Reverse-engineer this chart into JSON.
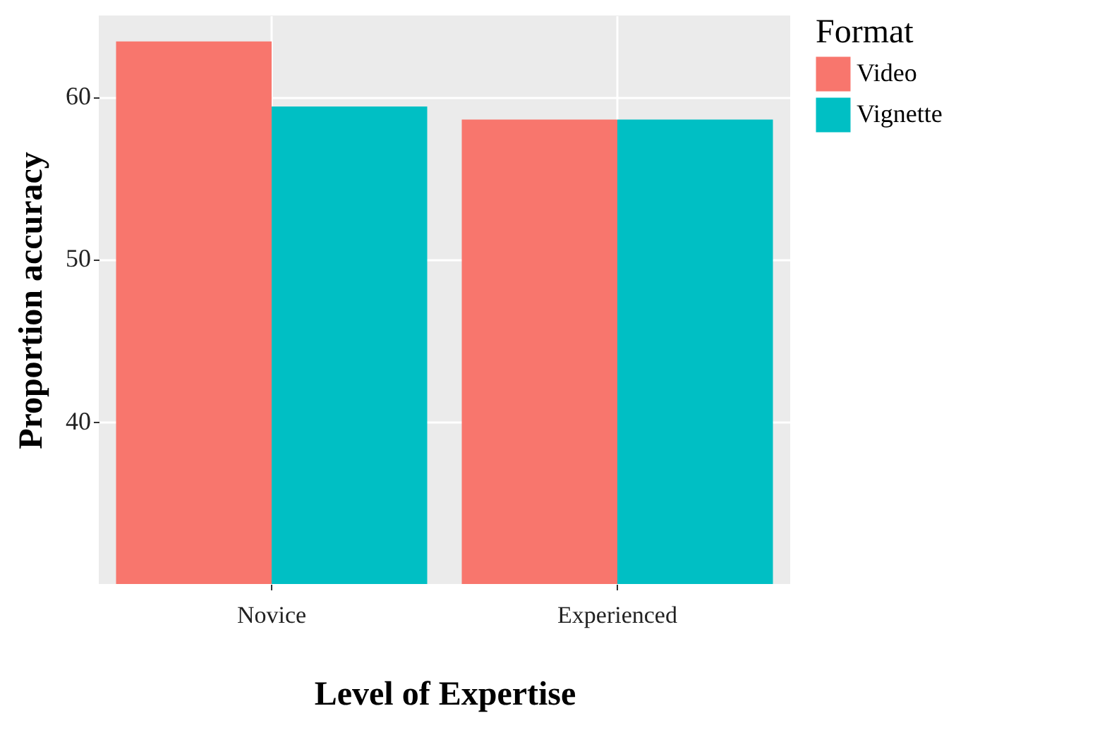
{
  "chart_data": {
    "type": "bar",
    "xlabel": "Level of Expertise",
    "ylabel": "Proportion accuracy",
    "legend_title": "Format",
    "categories": [
      "Novice",
      "Experienced"
    ],
    "series": [
      {
        "name": "Video",
        "color": "#f8766d",
        "values": [
          63.4,
          58.6
        ]
      },
      {
        "name": "Vignette",
        "color": "#00bfc4",
        "values": [
          59.4,
          58.6
        ]
      }
    ],
    "ylim": [
      30,
      65
    ],
    "yticks": [
      40,
      50,
      60
    ],
    "grid": true,
    "legend": "right"
  }
}
